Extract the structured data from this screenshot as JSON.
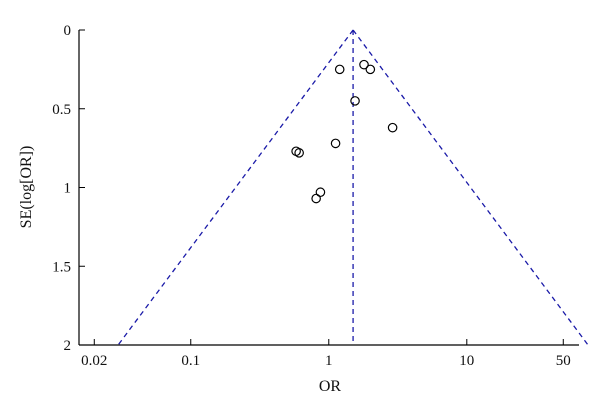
{
  "chart_data": {
    "type": "scatter",
    "title": "",
    "xlabel": "OR",
    "ylabel": "SE(log[OR])",
    "x_scale": "log",
    "y_reversed": true,
    "xlim": [
      0.0155,
      65
    ],
    "ylim": [
      0,
      2
    ],
    "x_ticks": [
      {
        "value": 0.02,
        "label": "0.02"
      },
      {
        "value": 0.1,
        "label": "0.1"
      },
      {
        "value": 1,
        "label": "1"
      },
      {
        "value": 10,
        "label": "10"
      },
      {
        "value": 50,
        "label": "50"
      }
    ],
    "y_ticks": [
      {
        "value": 0,
        "label": "0"
      },
      {
        "value": 0.5,
        "label": "0.5"
      },
      {
        "value": 1,
        "label": "1"
      },
      {
        "value": 1.5,
        "label": "1.5"
      },
      {
        "value": 2,
        "label": "2"
      }
    ],
    "pooled_or": 1.5,
    "funnel_z": 1.96,
    "grid": false,
    "colors": {
      "guide_lines": "#1a1aa8",
      "points": "#000000",
      "axes": "#000000"
    },
    "points": [
      {
        "x": 1.2,
        "y": 0.25
      },
      {
        "x": 1.8,
        "y": 0.22
      },
      {
        "x": 2.0,
        "y": 0.25
      },
      {
        "x": 1.55,
        "y": 0.45
      },
      {
        "x": 2.9,
        "y": 0.62
      },
      {
        "x": 1.12,
        "y": 0.72
      },
      {
        "x": 0.58,
        "y": 0.77
      },
      {
        "x": 0.61,
        "y": 0.78
      },
      {
        "x": 0.87,
        "y": 1.03
      },
      {
        "x": 0.81,
        "y": 1.07
      }
    ]
  }
}
